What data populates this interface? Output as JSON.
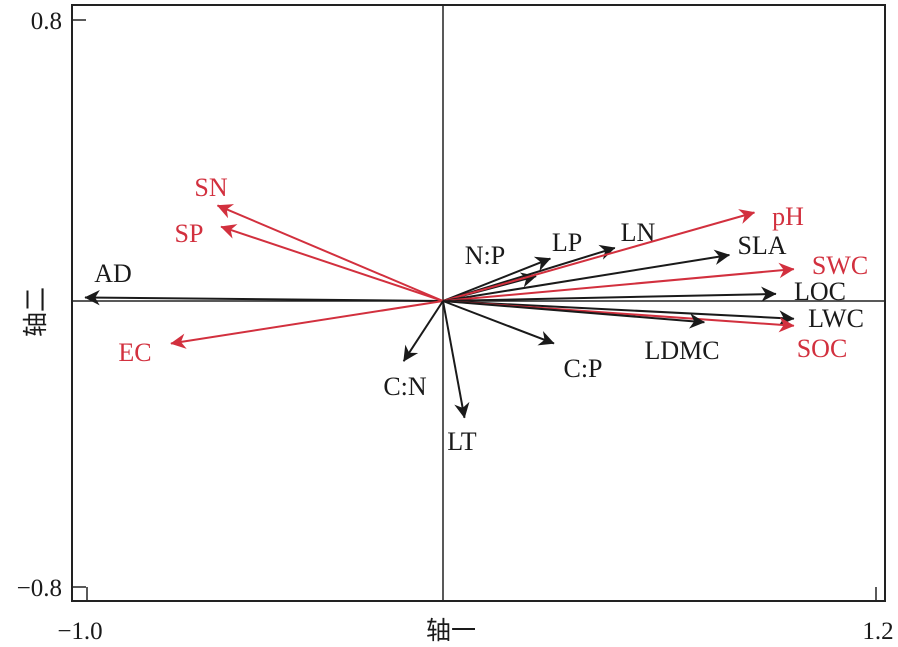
{
  "chart_data": {
    "type": "biplot",
    "xlabel": "轴一",
    "ylabel": "轴二",
    "xlim": [
      -1.0,
      1.2
    ],
    "ylim": [
      -0.8,
      0.8
    ],
    "x_ticks": [
      "−1.0",
      "1.2"
    ],
    "y_ticks": [
      "0.8",
      "−0.8"
    ],
    "grid": false,
    "colors": {
      "plant_traits": "#1a1a1a",
      "soil_factors": "#d2303e"
    },
    "vectors": [
      {
        "label": "AD",
        "group": "plant_traits",
        "x": -1.0,
        "y": 0.01
      },
      {
        "label": "SN",
        "group": "soil_factors",
        "x": -0.63,
        "y": 0.27
      },
      {
        "label": "SP",
        "group": "soil_factors",
        "x": -0.62,
        "y": 0.21
      },
      {
        "label": "EC",
        "group": "soil_factors",
        "x": -0.76,
        "y": -0.12
      },
      {
        "label": "N:P",
        "group": "plant_traits",
        "x": 0.26,
        "y": 0.07
      },
      {
        "label": "LP",
        "group": "plant_traits",
        "x": 0.3,
        "y": 0.12
      },
      {
        "label": "LN",
        "group": "plant_traits",
        "x": 0.48,
        "y": 0.15
      },
      {
        "label": "pH",
        "group": "soil_factors",
        "x": 0.87,
        "y": 0.25
      },
      {
        "label": "SLA",
        "group": "plant_traits",
        "x": 0.8,
        "y": 0.13
      },
      {
        "label": "SWC",
        "group": "soil_factors",
        "x": 0.98,
        "y": 0.09
      },
      {
        "label": "LOC",
        "group": "plant_traits",
        "x": 0.93,
        "y": 0.02
      },
      {
        "label": "LWC",
        "group": "plant_traits",
        "x": 0.98,
        "y": -0.05
      },
      {
        "label": "SOC",
        "group": "soil_factors",
        "x": 0.98,
        "y": -0.07
      },
      {
        "label": "LDMC",
        "group": "plant_traits",
        "x": 0.73,
        "y": -0.06
      },
      {
        "label": "C:N",
        "group": "plant_traits",
        "x": -0.11,
        "y": -0.17
      },
      {
        "label": "LT",
        "group": "plant_traits",
        "x": 0.06,
        "y": -0.33
      },
      {
        "label": "C:P",
        "group": "plant_traits",
        "x": 0.31,
        "y": -0.12
      }
    ]
  }
}
